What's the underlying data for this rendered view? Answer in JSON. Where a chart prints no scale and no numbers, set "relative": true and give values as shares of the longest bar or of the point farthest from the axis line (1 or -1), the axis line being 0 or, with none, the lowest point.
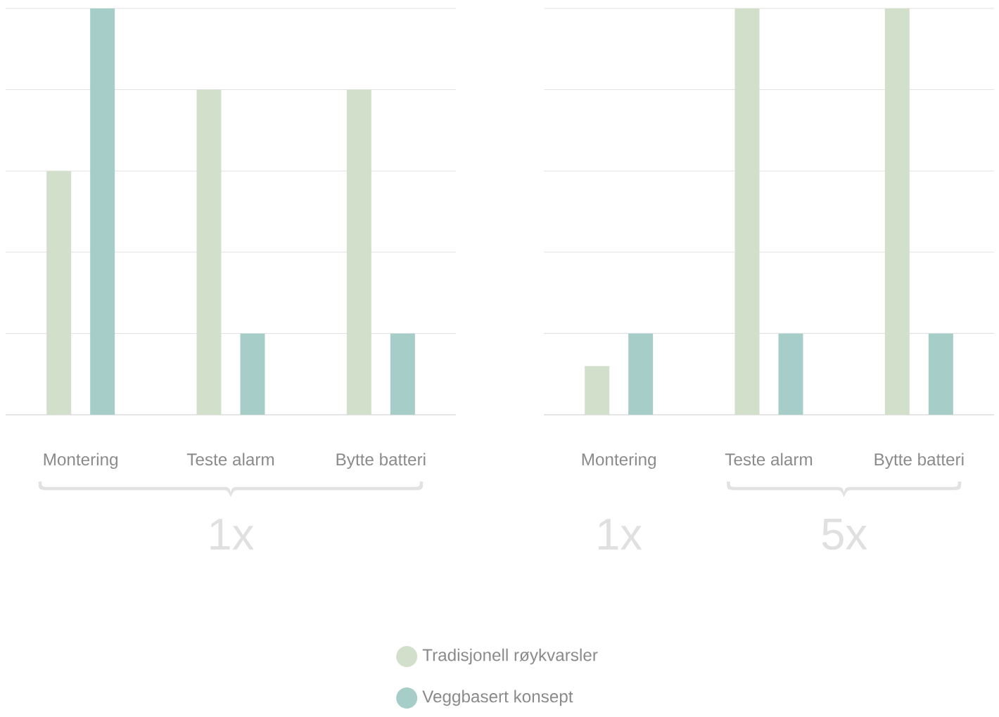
{
  "chart_data": [
    {
      "type": "bar",
      "relative": true,
      "grid": "y",
      "legend": "bottom",
      "categories": [
        "Montering",
        "Teste alarm",
        "Bytte batteri"
      ],
      "series": [
        {
          "name": "Tradisjonell røykvarsler",
          "color": "#d2dfcb",
          "values": [
            0.6,
            0.8,
            0.8
          ]
        },
        {
          "name": "Veggbasert konsept",
          "color": "#a7cdc9",
          "values": [
            1.0,
            0.2,
            0.2
          ]
        }
      ],
      "annotations": [
        "1x"
      ]
    },
    {
      "type": "bar",
      "relative": true,
      "grid": "y",
      "categories": [
        "Montering",
        "Teste alarm",
        "Bytte batteri"
      ],
      "series": [
        {
          "color": "#d2dfcb",
          "values": [
            0.12,
            1.0,
            1.0
          ]
        },
        {
          "color": "#a7cdc9",
          "values": [
            0.2,
            0.2,
            0.2
          ]
        }
      ],
      "annotations": [
        "1x",
        "5x"
      ]
    }
  ]
}
